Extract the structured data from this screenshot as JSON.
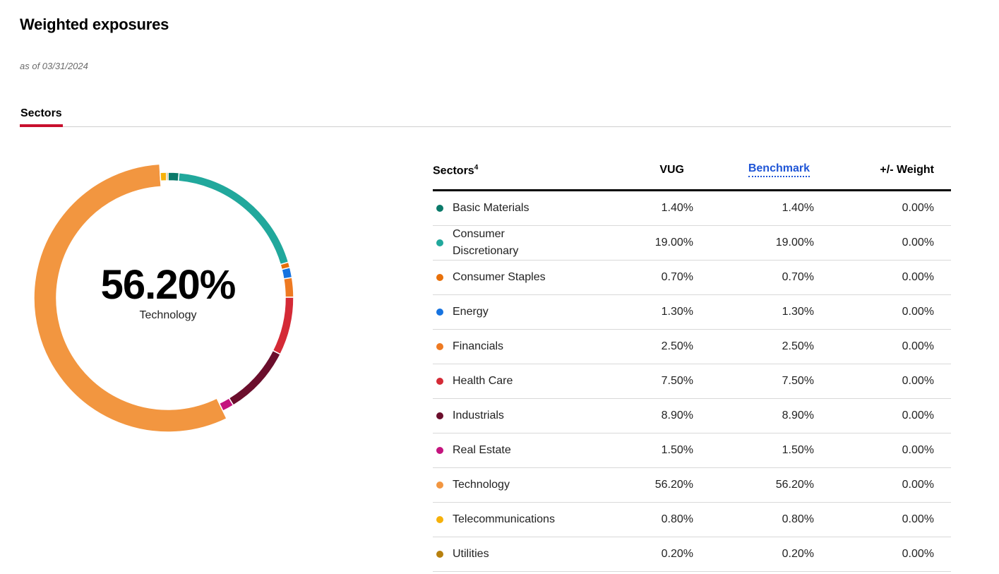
{
  "page": {
    "title": "Weighted exposures",
    "as_of": "as of 03/31/2024"
  },
  "tabs": [
    {
      "label": "Sectors",
      "active": true
    }
  ],
  "highlight": {
    "value": "56.20%",
    "label": "Technology"
  },
  "table": {
    "headers": {
      "sector": "Sectors",
      "sector_footnote": "4",
      "fund": "VUG",
      "benchmark": "Benchmark",
      "diff": "+/- Weight"
    },
    "rows": [
      {
        "name": "Basic Materials",
        "color": "#0b7a6a",
        "fund": "1.40%",
        "benchmark": "1.40%",
        "diff": "0.00%"
      },
      {
        "name": "Consumer Discretionary",
        "color": "#21a89c",
        "fund": "19.00%",
        "benchmark": "19.00%",
        "diff": "0.00%"
      },
      {
        "name": "Consumer Staples",
        "color": "#e8700a",
        "fund": "0.70%",
        "benchmark": "0.70%",
        "diff": "0.00%"
      },
      {
        "name": "Energy",
        "color": "#1673e0",
        "fund": "1.30%",
        "benchmark": "1.30%",
        "diff": "0.00%"
      },
      {
        "name": "Financials",
        "color": "#ee7a22",
        "fund": "2.50%",
        "benchmark": "2.50%",
        "diff": "0.00%"
      },
      {
        "name": "Health Care",
        "color": "#d42a36",
        "fund": "7.50%",
        "benchmark": "7.50%",
        "diff": "0.00%"
      },
      {
        "name": "Industrials",
        "color": "#6b0e2c",
        "fund": "8.90%",
        "benchmark": "8.90%",
        "diff": "0.00%"
      },
      {
        "name": "Real Estate",
        "color": "#c4147e",
        "fund": "1.50%",
        "benchmark": "1.50%",
        "diff": "0.00%"
      },
      {
        "name": "Technology",
        "color": "#f29640",
        "fund": "56.20%",
        "benchmark": "56.20%",
        "diff": "0.00%"
      },
      {
        "name": "Telecommunications",
        "color": "#f6b10a",
        "fund": "0.80%",
        "benchmark": "0.80%",
        "diff": "0.00%"
      },
      {
        "name": "Utilities",
        "color": "#b7800e",
        "fund": "0.20%",
        "benchmark": "0.20%",
        "diff": "0.00%"
      }
    ]
  },
  "chart_data": {
    "type": "pie",
    "categories": [
      "Basic Materials",
      "Consumer Discretionary",
      "Consumer Staples",
      "Energy",
      "Financials",
      "Health Care",
      "Industrials",
      "Real Estate",
      "Technology",
      "Telecommunications",
      "Utilities"
    ],
    "values": [
      1.4,
      19.0,
      0.7,
      1.3,
      2.5,
      7.5,
      8.9,
      1.5,
      56.2,
      0.8,
      0.2
    ],
    "colors": [
      "#0b7a6a",
      "#21a89c",
      "#e8700a",
      "#1673e0",
      "#ee7a22",
      "#d42a36",
      "#6b0e2c",
      "#c4147e",
      "#f29640",
      "#f6b10a",
      "#b7800e"
    ],
    "highlighted": "Technology",
    "style": "donut"
  }
}
